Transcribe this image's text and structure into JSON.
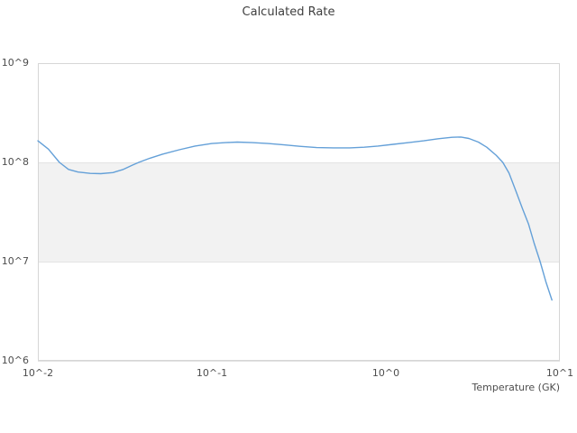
{
  "title": "Calculated Rate",
  "chart_data": {
    "type": "line",
    "title": "Calculated Rate",
    "xlabel": "Temperature (GK)",
    "ylabel": "",
    "x_scale": "log",
    "y_scale": "log",
    "xlim": [
      0.01,
      10
    ],
    "ylim": [
      1000000.0,
      1000000000.0
    ],
    "x_ticks": [
      0.01,
      0.1,
      1,
      10
    ],
    "x_tick_labels": [
      "10^-2",
      "10^-1",
      "10^0",
      "10^1"
    ],
    "y_ticks": [
      1000000.0,
      10000000.0,
      100000000.0,
      1000000000.0
    ],
    "y_tick_labels": [
      "10^6",
      "10^7",
      "10^8",
      "10^9"
    ],
    "grid": true,
    "legend": false,
    "band": {
      "from": 10000000.0,
      "to": 100000000.0,
      "color": "#f2f2f2"
    },
    "line_color": "#64a0d8",
    "grid_color": "#e3e3e3",
    "border_color": "#d6d6d6",
    "series": [
      {
        "name": "Calculated Rate",
        "x": [
          0.01,
          0.0115,
          0.0133,
          0.015,
          0.017,
          0.02,
          0.023,
          0.027,
          0.031,
          0.035,
          0.038,
          0.044,
          0.052,
          0.065,
          0.08,
          0.1,
          0.12,
          0.14,
          0.17,
          0.21,
          0.26,
          0.32,
          0.4,
          0.5,
          0.62,
          0.75,
          0.9,
          1.1,
          1.35,
          1.65,
          2.0,
          2.4,
          2.7,
          3.0,
          3.4,
          3.8,
          4.3,
          4.7,
          5.1,
          5.6,
          6.1,
          6.6,
          7.1,
          7.7,
          8.3,
          9.0
        ],
        "y": [
          165000000.0,
          136000000.0,
          100000000.0,
          85000000.0,
          80000000.0,
          77500000.0,
          77000000.0,
          79000000.0,
          85000000.0,
          94000000.0,
          100000000.0,
          110000000.0,
          121000000.0,
          134000000.0,
          146000000.0,
          155000000.0,
          158000000.0,
          160000000.0,
          158000000.0,
          155000000.0,
          150000000.0,
          145000000.0,
          141000000.0,
          140000000.0,
          140000000.0,
          142000000.0,
          146000000.0,
          152000000.0,
          158000000.0,
          165000000.0,
          173000000.0,
          179000000.0,
          180000000.0,
          174000000.0,
          160000000.0,
          142000000.0,
          118000000.0,
          100000000.0,
          78000000.0,
          51000000.0,
          34000000.0,
          24000000.0,
          15500000.0,
          10000000.0,
          6300000.0,
          4100000.0
        ]
      }
    ]
  }
}
